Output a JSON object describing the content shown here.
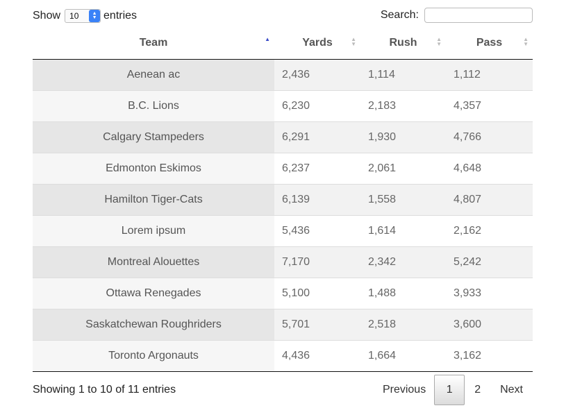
{
  "length_control": {
    "prefix": "Show",
    "selected": "10",
    "suffix": "entries"
  },
  "search": {
    "label": "Search:",
    "value": ""
  },
  "table": {
    "columns": [
      {
        "label": "Team",
        "sort": "ascending"
      },
      {
        "label": "Yards",
        "sort": "none"
      },
      {
        "label": "Rush",
        "sort": "none"
      },
      {
        "label": "Pass",
        "sort": "none"
      }
    ],
    "rows": [
      {
        "team": "Aenean ac",
        "yards": "2,436",
        "rush": "1,114",
        "pass": "1,112"
      },
      {
        "team": "B.C. Lions",
        "yards": "6,230",
        "rush": "2,183",
        "pass": "4,357"
      },
      {
        "team": "Calgary Stampeders",
        "yards": "6,291",
        "rush": "1,930",
        "pass": "4,766"
      },
      {
        "team": "Edmonton Eskimos",
        "yards": "6,237",
        "rush": "2,061",
        "pass": "4,648"
      },
      {
        "team": "Hamilton Tiger-Cats",
        "yards": "6,139",
        "rush": "1,558",
        "pass": "4,807"
      },
      {
        "team": "Lorem ipsum",
        "yards": "5,436",
        "rush": "1,614",
        "pass": "2,162"
      },
      {
        "team": "Montreal Alouettes",
        "yards": "7,170",
        "rush": "2,342",
        "pass": "5,242"
      },
      {
        "team": "Ottawa Renegades",
        "yards": "5,100",
        "rush": "1,488",
        "pass": "3,933"
      },
      {
        "team": "Saskatchewan Roughriders",
        "yards": "5,701",
        "rush": "2,518",
        "pass": "3,600"
      },
      {
        "team": "Toronto Argonauts",
        "yards": "4,436",
        "rush": "1,664",
        "pass": "3,162"
      }
    ]
  },
  "footer": {
    "info": "Showing 1 to 10 of 11 entries",
    "pagination": {
      "previous": "Previous",
      "pages": [
        "1",
        "2"
      ],
      "current_page": "1",
      "next": "Next"
    }
  },
  "colors": {
    "sort_active": "#3a4bc8",
    "select_accent": "#3a82f7"
  }
}
